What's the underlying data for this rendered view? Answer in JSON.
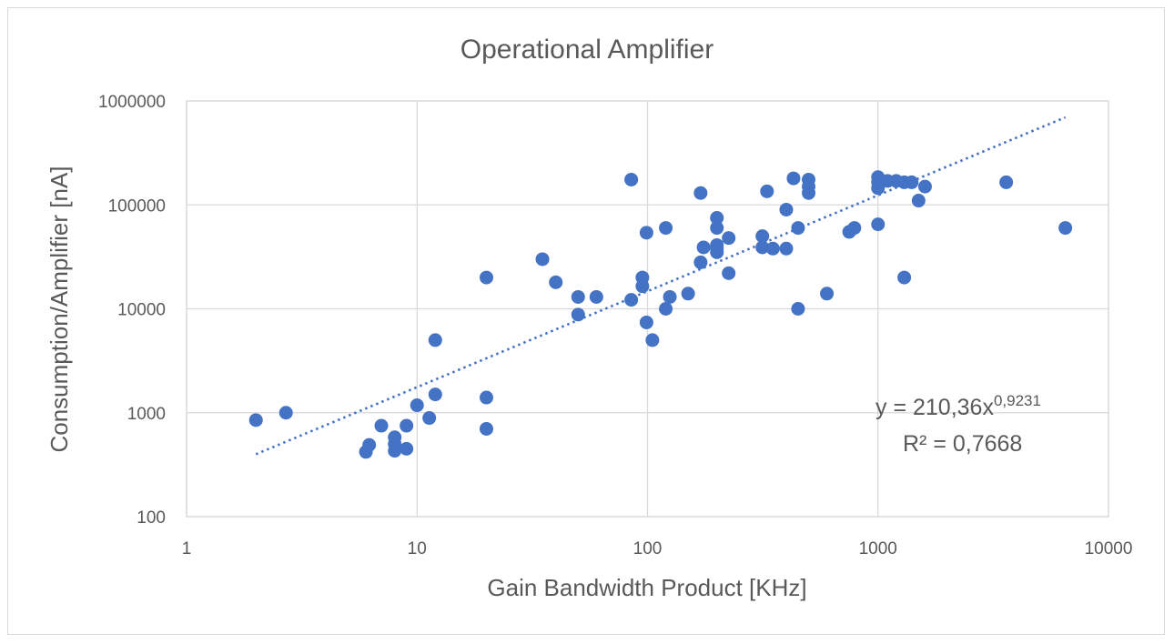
{
  "chart_data": {
    "type": "scatter",
    "title": "Operational Amplifier",
    "xlabel": "Gain Bandwidth Product [KHz]",
    "ylabel": "Consumption/Amplifier [nA]",
    "xscale": "log",
    "yscale": "log",
    "xlim": [
      1,
      10000
    ],
    "ylim": [
      100,
      1000000
    ],
    "x_ticks": [
      "1",
      "10",
      "100",
      "1000",
      "10000"
    ],
    "y_ticks": [
      "100",
      "1000",
      "10000",
      "100000",
      "1000000"
    ],
    "grid": true,
    "legend": "none",
    "marker_color": "#4472c4",
    "points": [
      [
        2,
        850
      ],
      [
        2.7,
        1000
      ],
      [
        6,
        420
      ],
      [
        6.2,
        490
      ],
      [
        7,
        750
      ],
      [
        8,
        580
      ],
      [
        8,
        500
      ],
      [
        8,
        430
      ],
      [
        9,
        750
      ],
      [
        9,
        450
      ],
      [
        10,
        1180
      ],
      [
        11.3,
        890
      ],
      [
        12,
        1500
      ],
      [
        12,
        5000
      ],
      [
        20,
        20000
      ],
      [
        20,
        1400
      ],
      [
        20,
        700
      ],
      [
        35,
        30000
      ],
      [
        40,
        18000
      ],
      [
        50,
        13000
      ],
      [
        50,
        8800
      ],
      [
        60,
        13000
      ],
      [
        85,
        12200
      ],
      [
        85,
        175000
      ],
      [
        95,
        20000
      ],
      [
        95,
        16500
      ],
      [
        99,
        54000
      ],
      [
        99,
        7400
      ],
      [
        105,
        5000
      ],
      [
        120,
        60000
      ],
      [
        120,
        10000
      ],
      [
        125,
        13000
      ],
      [
        150,
        14000
      ],
      [
        170,
        28000
      ],
      [
        170,
        130000
      ],
      [
        175,
        39000
      ],
      [
        200,
        75000
      ],
      [
        200,
        60000
      ],
      [
        200,
        41000
      ],
      [
        200,
        38000
      ],
      [
        200,
        35000
      ],
      [
        225,
        48000
      ],
      [
        225,
        22000
      ],
      [
        315,
        50000
      ],
      [
        315,
        39000
      ],
      [
        330,
        135000
      ],
      [
        350,
        38000
      ],
      [
        400,
        90000
      ],
      [
        400,
        38000
      ],
      [
        430,
        180000
      ],
      [
        450,
        60000
      ],
      [
        450,
        10000
      ],
      [
        500,
        175000
      ],
      [
        500,
        150000
      ],
      [
        500,
        130000
      ],
      [
        600,
        14000
      ],
      [
        750,
        55000
      ],
      [
        790,
        60000
      ],
      [
        1000,
        185000
      ],
      [
        1000,
        165000
      ],
      [
        1000,
        145000
      ],
      [
        1000,
        65000
      ],
      [
        1100,
        170000
      ],
      [
        1200,
        170000
      ],
      [
        1300,
        165000
      ],
      [
        1300,
        20000
      ],
      [
        1400,
        165000
      ],
      [
        1500,
        110000
      ],
      [
        1600,
        150000
      ],
      [
        3600,
        165000
      ],
      [
        6500,
        60000
      ]
    ],
    "trendline": {
      "type": "power",
      "coefficient": 210.36,
      "exponent": 0.9231,
      "x_range": [
        2,
        6500
      ],
      "style": "dotted"
    },
    "annotations": {
      "equation_prefix": "y = 210,36x",
      "equation_exponent": "0,9231",
      "r_squared": "R² = 0,7668"
    }
  }
}
